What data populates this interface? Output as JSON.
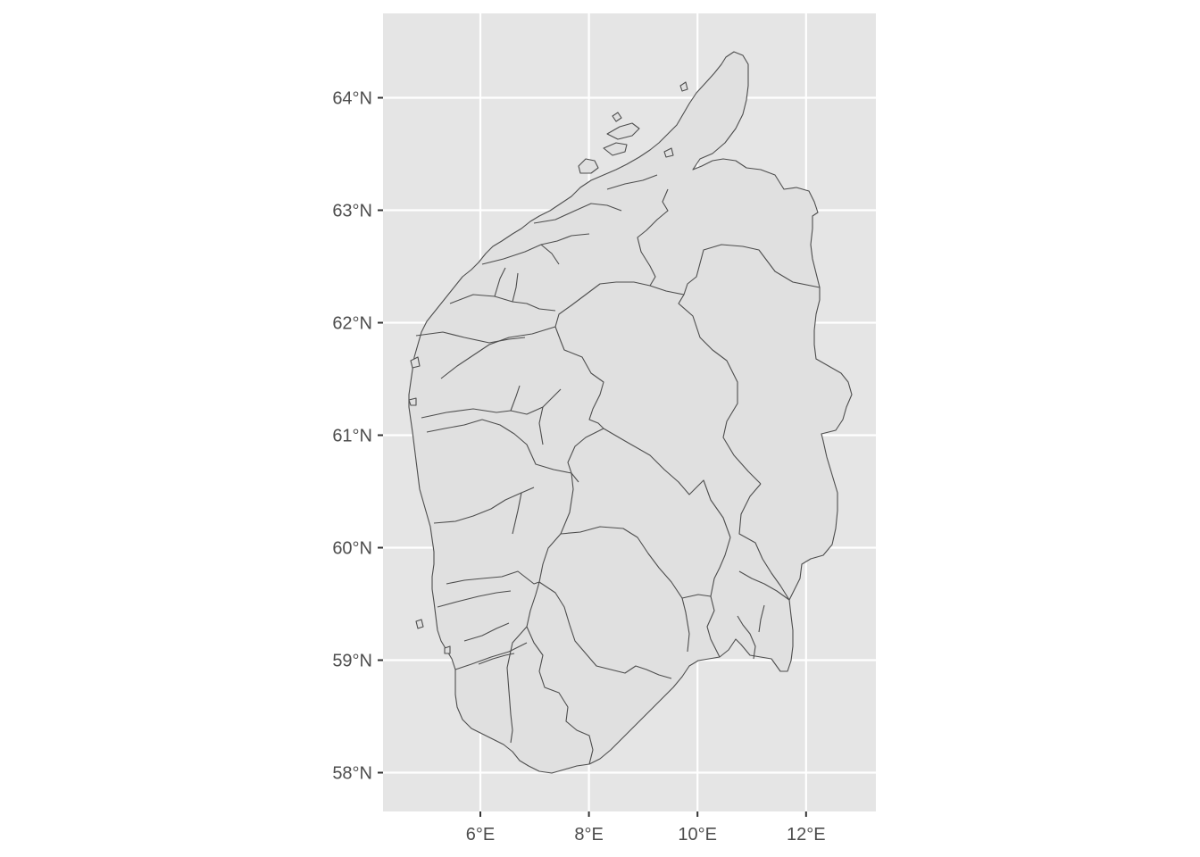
{
  "map": {
    "panel_background": "#e5e5e5",
    "region_fill": "#e0e0e0",
    "region_stroke": "#4d4d4d",
    "grid_color": "#ffffff",
    "xlim": [
      4.2,
      13.3
    ],
    "ylim": [
      57.7,
      64.75
    ],
    "x_ticks": [
      {
        "value": 6,
        "label": "6°E"
      },
      {
        "value": 8,
        "label": "8°E"
      },
      {
        "value": 10,
        "label": "10°E"
      },
      {
        "value": 12,
        "label": "12°E"
      }
    ],
    "y_ticks": [
      {
        "value": 58,
        "label": "58°N"
      },
      {
        "value": 59,
        "label": "59°N"
      },
      {
        "value": 60,
        "label": "60°N"
      },
      {
        "value": 61,
        "label": "61°N"
      },
      {
        "value": 62,
        "label": "62°N"
      },
      {
        "value": 63,
        "label": "63°N"
      },
      {
        "value": 64,
        "label": "64°N"
      }
    ]
  }
}
